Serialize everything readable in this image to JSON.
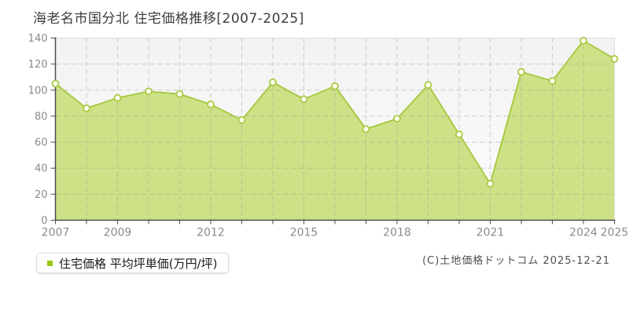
{
  "title": "海老名市国分北 住宅価格推移[2007-2025]",
  "legend": {
    "marker_color": "#9bc714",
    "label": "住宅価格 平均坪単価(万円/坪)"
  },
  "copyright": "(C)土地価格ドットコム 2025-12-21",
  "chart_data": {
    "type": "area",
    "title": "海老名市国分北 住宅価格推移[2007-2025]",
    "series_name": "住宅価格 平均坪単価(万円/坪)",
    "x": [
      2007,
      2008,
      2009,
      2010,
      2011,
      2012,
      2013,
      2014,
      2015,
      2016,
      2017,
      2018,
      2019,
      2020,
      2021,
      2022,
      2023,
      2024,
      2025
    ],
    "values": [
      105,
      86,
      94,
      99,
      97,
      89,
      77,
      106,
      93,
      103,
      70,
      78,
      104,
      66,
      28,
      114,
      107,
      138,
      124
    ],
    "xlabel": "",
    "ylabel": "万円/坪",
    "ylim": [
      0,
      140
    ],
    "ytick_step": 20,
    "xtick_labels": [
      "2007",
      "2009",
      "2012",
      "2015",
      "2018",
      "2021",
      "2024",
      "2025"
    ],
    "grid": true,
    "legend_position": "bottom-left",
    "colors": {
      "line": "#a9ca45",
      "fill": "#cde287",
      "marker_fill": "#fdfff2",
      "axis": "#4d4d4d",
      "grid": "#9a9a9a",
      "tick_text": "#8a8a8a",
      "plot_border": "#dcdcdc",
      "plot_bg_top": "#f2f2f2",
      "plot_bg_bottom": "#fdfdfd"
    }
  }
}
